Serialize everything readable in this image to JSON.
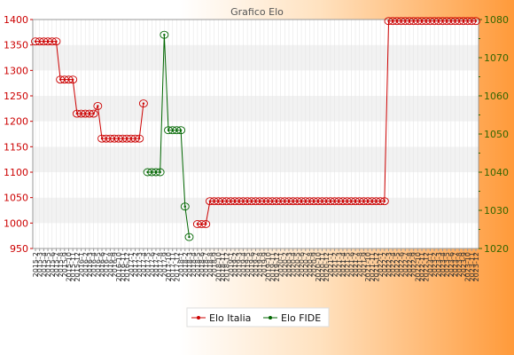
{
  "chart_data": {
    "type": "line",
    "title": "Grafico Elo",
    "legend_position": "bottom-center",
    "colors": {
      "left_axis": "#cc0000",
      "right_axis": "#336600",
      "series_a": "#cc0000",
      "series_b": "#006600",
      "band": "#f2f2f2"
    },
    "left_axis": {
      "min": 950,
      "max": 1400,
      "ticks": [
        "950",
        "1000",
        "1050",
        "1100",
        "1150",
        "1200",
        "1250",
        "1300",
        "1350",
        "1400"
      ]
    },
    "right_axis": {
      "min": 1020,
      "max": 1080,
      "ticks": [
        "1020",
        "1030",
        "1040",
        "1050",
        "1060",
        "1070",
        "1080"
      ]
    },
    "x_labels": [
      "2015-2",
      "2015-3",
      "2015-4",
      "2015-5",
      "2015-6",
      "2015-7",
      "2015-8",
      "2015-9",
      "2015-10",
      "2015-11",
      "2015-12",
      "2016-1",
      "2016-2",
      "2016-3",
      "2016-4",
      "2016-5",
      "2016-6",
      "2016-7",
      "2016-8",
      "2016-9",
      "2016-10",
      "2016-11",
      "2016-12",
      "2017-1",
      "2017-2",
      "2017-3",
      "2017-4",
      "2017-5",
      "2017-6",
      "2017-7",
      "2017-8",
      "2017-9",
      "2017-10",
      "2017-11",
      "2017-12",
      "2018-1",
      "2018-2",
      "2018-3",
      "2018-4",
      "2018-5",
      "2018-6",
      "2018-7",
      "2018-8",
      "2018-9",
      "2018-10",
      "2018-11",
      "2018-12",
      "2019-1",
      "2019-2",
      "2019-3",
      "2019-4",
      "2019-5",
      "2019-6",
      "2019-7",
      "2019-8",
      "2019-9",
      "2019-10",
      "2019-11",
      "2019-12",
      "2020-1",
      "2020-2",
      "2020-3",
      "2020-4",
      "2020-5",
      "2020-6",
      "2020-7",
      "2020-8",
      "2020-9",
      "2020-10",
      "2020-11",
      "2020-12",
      "2021-1",
      "2021-2",
      "2021-3",
      "2021-4",
      "2021-5",
      "2021-6",
      "2021-7",
      "2021-8",
      "2021-9",
      "2021-10",
      "2021-11",
      "2021-12",
      "2022-1",
      "2022-2",
      "2022-3",
      "2022-4",
      "2022-5",
      "2022-6",
      "2022-7",
      "2022-8",
      "2022-9",
      "2022-10",
      "2022-11",
      "2022-12",
      "2023-1",
      "2023-2",
      "2023-3",
      "2023-4",
      "2023-5",
      "2023-6",
      "2023-7",
      "2023-8",
      "2023-9",
      "2023-10",
      "2023-11",
      "2023-12"
    ],
    "series": [
      {
        "name": "Elo Italia",
        "axis": "left",
        "values": [
          1357,
          1357,
          1357,
          1357,
          1357,
          1357,
          1282,
          1282,
          1282,
          1282,
          1215,
          1215,
          1215,
          1215,
          1215,
          1230,
          1166,
          1166,
          1166,
          1166,
          1166,
          1166,
          1166,
          1166,
          1166,
          1166,
          1235,
          null,
          null,
          null,
          null,
          null,
          null,
          null,
          null,
          null,
          null,
          null,
          null,
          998,
          998,
          998,
          1043,
          1043,
          1043,
          1043,
          1043,
          1043,
          1043,
          1043,
          1043,
          1043,
          1043,
          1043,
          1043,
          1043,
          1043,
          1043,
          1043,
          1043,
          1043,
          1043,
          1043,
          1043,
          1043,
          1043,
          1043,
          1043,
          1043,
          1043,
          1043,
          1043,
          1043,
          1043,
          1043,
          1043,
          1043,
          1043,
          1043,
          1043,
          1043,
          1043,
          1043,
          1043,
          1043,
          1397,
          1397,
          1397,
          1397,
          1397,
          1397,
          1397,
          1397,
          1397,
          1397,
          1397,
          1397,
          1397,
          1397,
          1397,
          1397,
          1397,
          1397,
          1397,
          1397,
          1397,
          1397
        ]
      },
      {
        "name": "Elo FIDE",
        "axis": "right",
        "values": [
          null,
          null,
          null,
          null,
          null,
          null,
          null,
          null,
          null,
          null,
          null,
          null,
          null,
          null,
          null,
          null,
          null,
          null,
          null,
          null,
          null,
          null,
          null,
          null,
          null,
          null,
          null,
          1040,
          1040,
          1040,
          1040,
          1076,
          1051,
          1051,
          1051,
          1051,
          1031,
          1023,
          null,
          null,
          null,
          null,
          null,
          null,
          null,
          null,
          null,
          null,
          null,
          null,
          null,
          null,
          null,
          null,
          null,
          null,
          null,
          null,
          null,
          null,
          null,
          null,
          null,
          null,
          null,
          null,
          null,
          null,
          null,
          null,
          null,
          null,
          null,
          null,
          null,
          null,
          null,
          null,
          null,
          null,
          null,
          null,
          null,
          null,
          null,
          null,
          null,
          null,
          null,
          null,
          null,
          null,
          null,
          null,
          null,
          null,
          null,
          null,
          null,
          null,
          null,
          null,
          null,
          null,
          null,
          null
        ]
      }
    ]
  }
}
